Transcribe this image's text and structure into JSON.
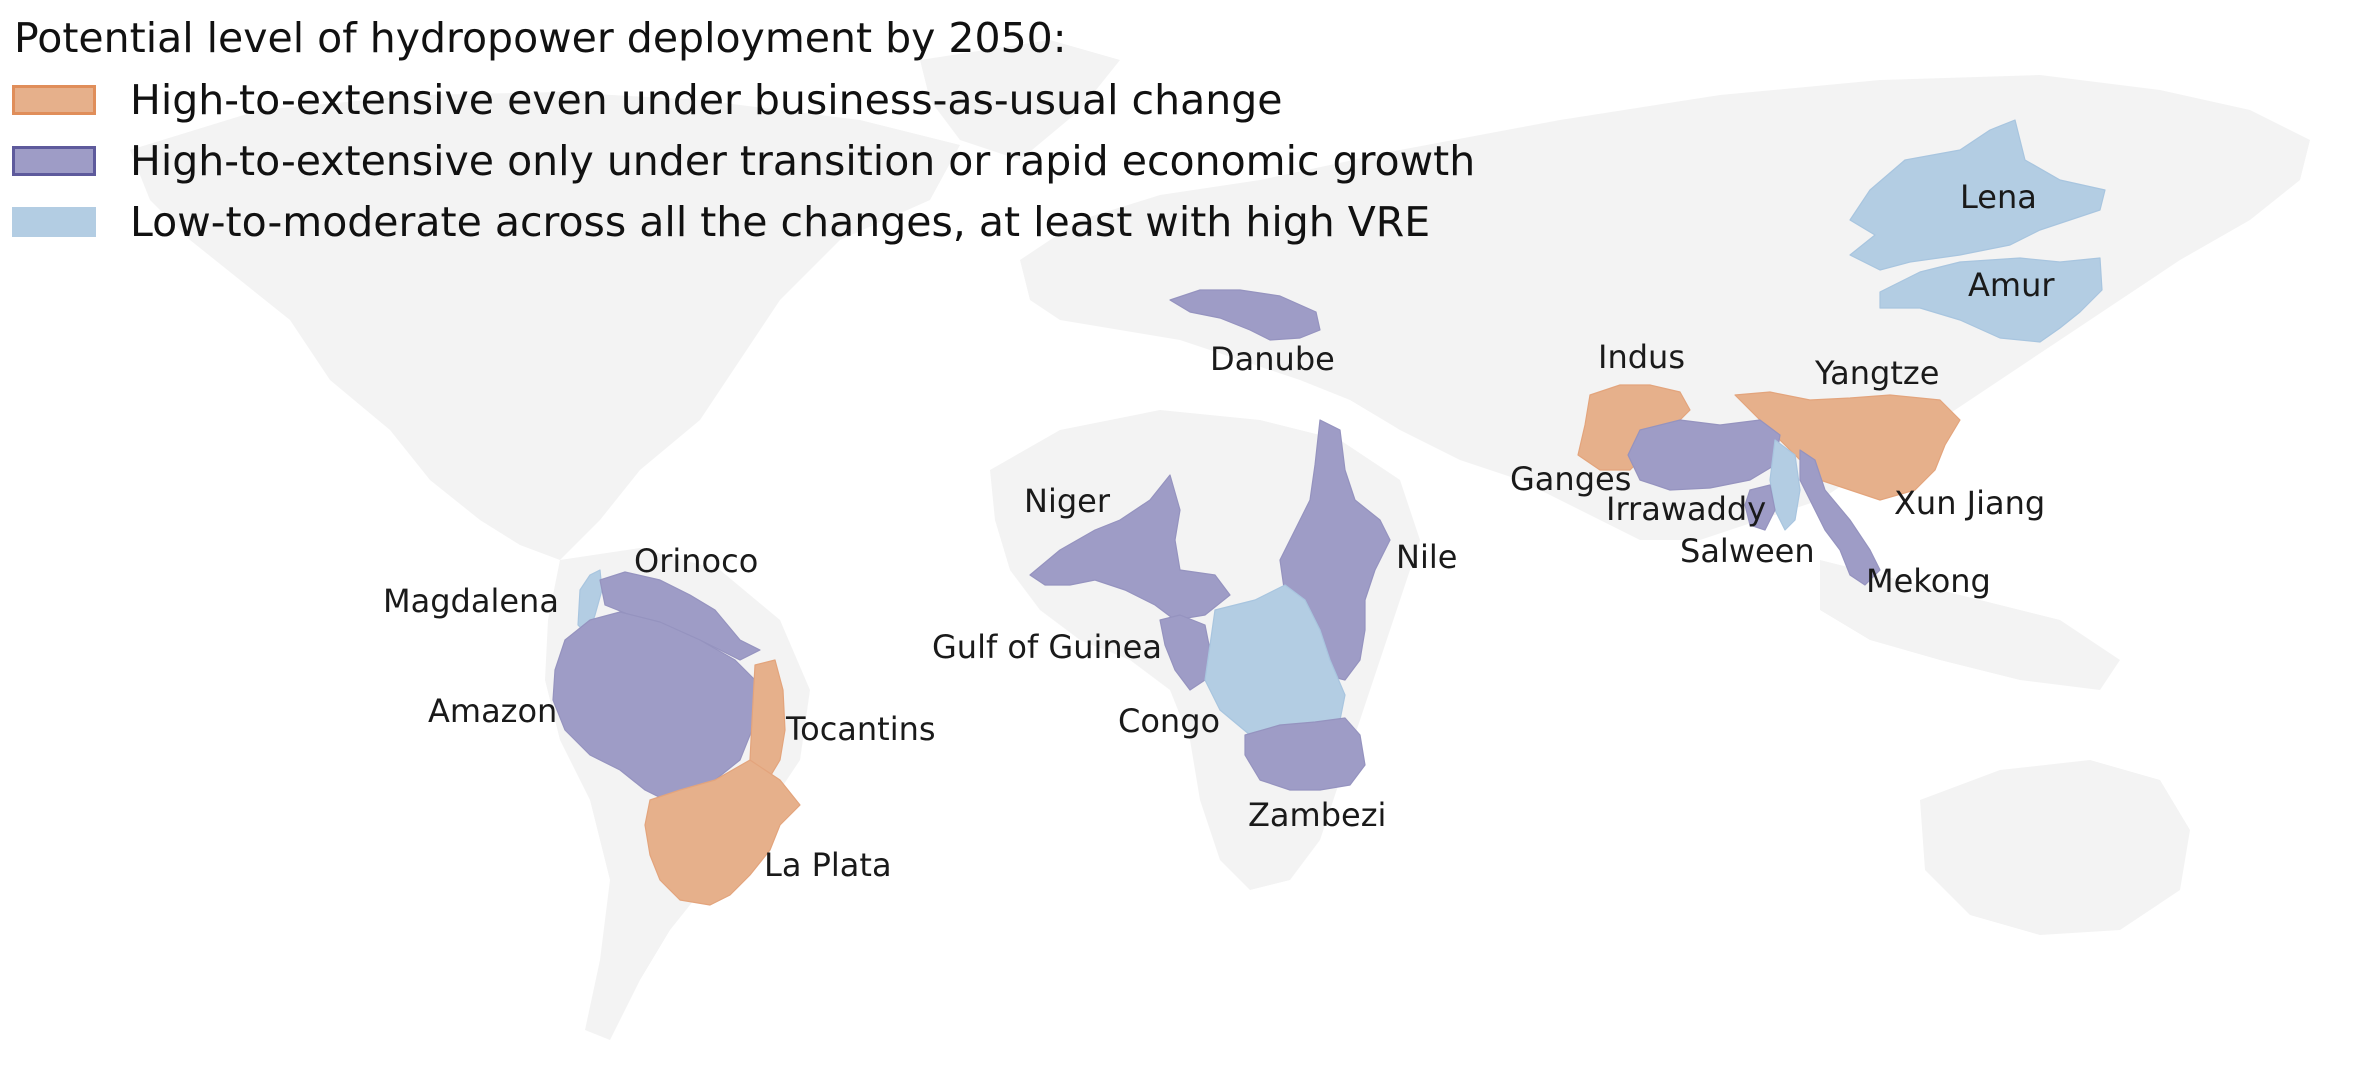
{
  "legend": {
    "title": "Potential level of hydropower deployment by 2050:",
    "items": [
      {
        "label": "High-to-extensive even under business-as-usual change",
        "fill": "#e6b08b",
        "border": "#e08e5a"
      },
      {
        "label": "High-to-extensive only under transition or rapid economic growth",
        "fill": "#9e9cc6",
        "border": "#5e5a9c"
      },
      {
        "label": "Low-to-moderate across all the changes, at least with high VRE",
        "fill": "#b3cde3",
        "border": "#b3cde3"
      }
    ]
  },
  "colors": {
    "land": "#f3f3f3",
    "high_bau": "#e6b08b",
    "high_transition": "#9e9cc6",
    "low_moderate": "#b3cde3"
  },
  "basins": [
    {
      "name": "Lena",
      "category": "low_moderate"
    },
    {
      "name": "Amur",
      "category": "low_moderate"
    },
    {
      "name": "Danube",
      "category": "high_transition"
    },
    {
      "name": "Indus",
      "category": "high_bau"
    },
    {
      "name": "Yangtze",
      "category": "high_bau"
    },
    {
      "name": "Ganges",
      "category": "high_transition"
    },
    {
      "name": "Irrawaddy",
      "category": "high_transition"
    },
    {
      "name": "Xun Jiang",
      "category": "high_bau"
    },
    {
      "name": "Salween",
      "category": "low_moderate"
    },
    {
      "name": "Mekong",
      "category": "high_transition"
    },
    {
      "name": "Niger",
      "category": "high_transition"
    },
    {
      "name": "Nile",
      "category": "high_transition"
    },
    {
      "name": "Gulf of Guinea",
      "category": "high_transition"
    },
    {
      "name": "Congo",
      "category": "low_moderate"
    },
    {
      "name": "Zambezi",
      "category": "high_transition"
    },
    {
      "name": "Orinoco",
      "category": "high_transition"
    },
    {
      "name": "Magdalena",
      "category": "low_moderate"
    },
    {
      "name": "Amazon",
      "category": "high_transition"
    },
    {
      "name": "Tocantins",
      "category": "high_bau"
    },
    {
      "name": "La Plata",
      "category": "high_bau"
    }
  ]
}
